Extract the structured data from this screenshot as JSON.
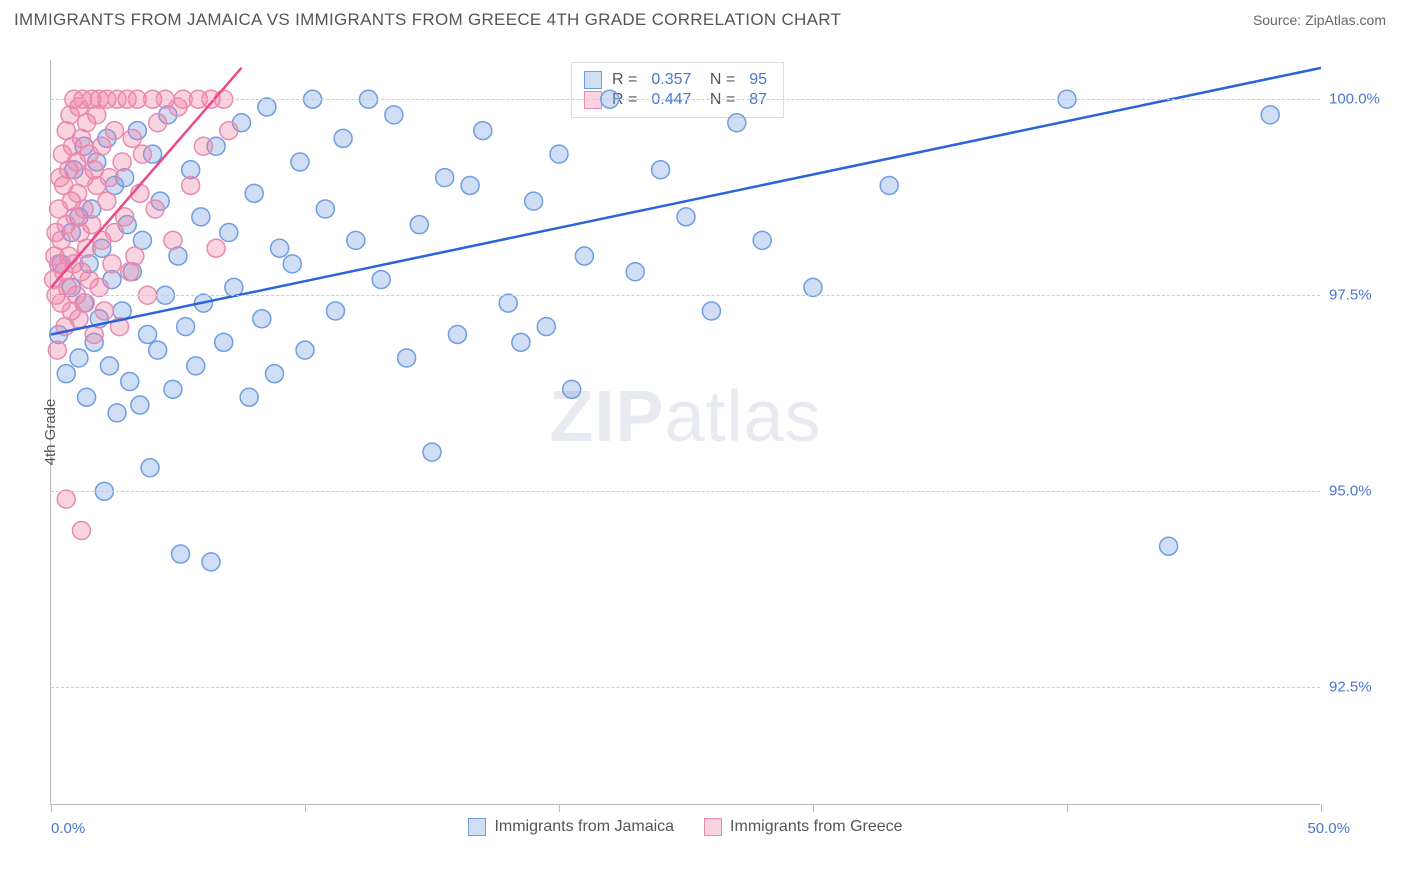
{
  "title": "IMMIGRANTS FROM JAMAICA VS IMMIGRANTS FROM GREECE 4TH GRADE CORRELATION CHART",
  "source_label": "Source: ZipAtlas.com",
  "watermark": {
    "bold": "ZIP",
    "light": "atlas"
  },
  "chart": {
    "type": "scatter",
    "y_axis_title": "4th Grade",
    "xlim": [
      0,
      50
    ],
    "ylim": [
      91,
      100.5
    ],
    "x_label_min": "0.0%",
    "x_label_max": "50.0%",
    "x_tick_positions": [
      0,
      10,
      20,
      30,
      40,
      50
    ],
    "y_ticks": [
      {
        "v": 100.0,
        "label": "100.0%"
      },
      {
        "v": 97.5,
        "label": "97.5%"
      },
      {
        "v": 95.0,
        "label": "95.0%"
      },
      {
        "v": 92.5,
        "label": "92.5%"
      }
    ],
    "grid_color": "#cccccc",
    "background_color": "#ffffff",
    "marker_radius": 9,
    "marker_stroke_width": 1.5,
    "line_width": 2.5,
    "series": [
      {
        "name": "Immigrants from Jamaica",
        "fill_color": "rgba(120,160,225,0.35)",
        "stroke_color": "#6f9de0",
        "line_color": "#2a64d8",
        "r_value": "0.357",
        "n_value": "95",
        "regression": {
          "x1": 0,
          "y1": 97.0,
          "x2": 50,
          "y2": 100.4
        },
        "points": [
          [
            0.3,
            97.0
          ],
          [
            0.4,
            97.9
          ],
          [
            0.6,
            96.5
          ],
          [
            0.8,
            97.6
          ],
          [
            0.8,
            98.3
          ],
          [
            0.9,
            99.1
          ],
          [
            1.1,
            96.7
          ],
          [
            1.1,
            98.5
          ],
          [
            1.3,
            97.4
          ],
          [
            1.3,
            99.4
          ],
          [
            1.4,
            96.2
          ],
          [
            1.5,
            97.9
          ],
          [
            1.6,
            98.6
          ],
          [
            1.7,
            96.9
          ],
          [
            1.8,
            99.2
          ],
          [
            1.9,
            97.2
          ],
          [
            2.0,
            98.1
          ],
          [
            2.1,
            95.0
          ],
          [
            2.2,
            99.5
          ],
          [
            2.3,
            96.6
          ],
          [
            2.4,
            97.7
          ],
          [
            2.5,
            98.9
          ],
          [
            2.6,
            96.0
          ],
          [
            2.8,
            97.3
          ],
          [
            2.9,
            99.0
          ],
          [
            3.0,
            98.4
          ],
          [
            3.1,
            96.4
          ],
          [
            3.2,
            97.8
          ],
          [
            3.4,
            99.6
          ],
          [
            3.5,
            96.1
          ],
          [
            3.6,
            98.2
          ],
          [
            3.8,
            97.0
          ],
          [
            3.9,
            95.3
          ],
          [
            4.0,
            99.3
          ],
          [
            4.2,
            96.8
          ],
          [
            4.3,
            98.7
          ],
          [
            4.5,
            97.5
          ],
          [
            4.6,
            99.8
          ],
          [
            4.8,
            96.3
          ],
          [
            5.0,
            98.0
          ],
          [
            5.1,
            94.2
          ],
          [
            5.3,
            97.1
          ],
          [
            5.5,
            99.1
          ],
          [
            5.7,
            96.6
          ],
          [
            5.9,
            98.5
          ],
          [
            6.0,
            97.4
          ],
          [
            6.3,
            94.1
          ],
          [
            6.5,
            99.4
          ],
          [
            6.8,
            96.9
          ],
          [
            7.0,
            98.3
          ],
          [
            7.2,
            97.6
          ],
          [
            7.5,
            99.7
          ],
          [
            7.8,
            96.2
          ],
          [
            8.0,
            98.8
          ],
          [
            8.3,
            97.2
          ],
          [
            8.5,
            99.9
          ],
          [
            8.8,
            96.5
          ],
          [
            9.0,
            98.1
          ],
          [
            9.5,
            97.9
          ],
          [
            9.8,
            99.2
          ],
          [
            10.0,
            96.8
          ],
          [
            10.3,
            100.0
          ],
          [
            10.8,
            98.6
          ],
          [
            11.2,
            97.3
          ],
          [
            11.5,
            99.5
          ],
          [
            12.0,
            98.2
          ],
          [
            12.5,
            100.0
          ],
          [
            13.0,
            97.7
          ],
          [
            13.5,
            99.8
          ],
          [
            14.0,
            96.7
          ],
          [
            14.5,
            98.4
          ],
          [
            15.0,
            95.5
          ],
          [
            15.5,
            99.0
          ],
          [
            16.0,
            97.0
          ],
          [
            16.5,
            98.9
          ],
          [
            17.0,
            99.6
          ],
          [
            18.0,
            97.4
          ],
          [
            18.5,
            96.9
          ],
          [
            19.0,
            98.7
          ],
          [
            19.5,
            97.1
          ],
          [
            20.0,
            99.3
          ],
          [
            20.5,
            96.3
          ],
          [
            21.0,
            98.0
          ],
          [
            22.0,
            100.0
          ],
          [
            23.0,
            97.8
          ],
          [
            24.0,
            99.1
          ],
          [
            25.0,
            98.5
          ],
          [
            26.0,
            97.3
          ],
          [
            27.0,
            99.7
          ],
          [
            28.0,
            98.2
          ],
          [
            30.0,
            97.6
          ],
          [
            33.0,
            98.9
          ],
          [
            40.0,
            100.0
          ],
          [
            44.0,
            94.3
          ],
          [
            48.0,
            99.8
          ]
        ]
      },
      {
        "name": "Immigrants from Greece",
        "fill_color": "rgba(240,130,165,0.35)",
        "stroke_color": "#e88aae",
        "line_color": "#e84a8a",
        "r_value": "0.447",
        "n_value": "87",
        "regression": {
          "x1": 0,
          "y1": 97.6,
          "x2": 7.5,
          "y2": 100.4
        },
        "points": [
          [
            0.1,
            97.7
          ],
          [
            0.15,
            98.0
          ],
          [
            0.2,
            97.5
          ],
          [
            0.2,
            98.3
          ],
          [
            0.25,
            96.8
          ],
          [
            0.3,
            98.6
          ],
          [
            0.3,
            97.9
          ],
          [
            0.35,
            99.0
          ],
          [
            0.4,
            97.4
          ],
          [
            0.4,
            98.2
          ],
          [
            0.45,
            99.3
          ],
          [
            0.5,
            97.8
          ],
          [
            0.5,
            98.9
          ],
          [
            0.55,
            97.1
          ],
          [
            0.6,
            99.6
          ],
          [
            0.6,
            98.4
          ],
          [
            0.65,
            97.6
          ],
          [
            0.7,
            99.1
          ],
          [
            0.7,
            98.0
          ],
          [
            0.75,
            99.8
          ],
          [
            0.8,
            97.3
          ],
          [
            0.8,
            98.7
          ],
          [
            0.85,
            99.4
          ],
          [
            0.9,
            97.9
          ],
          [
            0.9,
            100.0
          ],
          [
            0.95,
            98.5
          ],
          [
            1.0,
            99.2
          ],
          [
            1.0,
            97.5
          ],
          [
            1.05,
            98.8
          ],
          [
            1.1,
            99.9
          ],
          [
            1.1,
            97.2
          ],
          [
            1.15,
            98.3
          ],
          [
            1.2,
            99.5
          ],
          [
            1.2,
            97.8
          ],
          [
            1.25,
            100.0
          ],
          [
            1.3,
            98.6
          ],
          [
            1.3,
            99.0
          ],
          [
            1.35,
            97.4
          ],
          [
            1.4,
            99.7
          ],
          [
            1.4,
            98.1
          ],
          [
            1.5,
            99.3
          ],
          [
            1.5,
            97.7
          ],
          [
            1.6,
            100.0
          ],
          [
            1.6,
            98.4
          ],
          [
            1.7,
            99.1
          ],
          [
            1.7,
            97.0
          ],
          [
            1.8,
            98.9
          ],
          [
            1.8,
            99.8
          ],
          [
            1.9,
            97.6
          ],
          [
            1.9,
            100.0
          ],
          [
            2.0,
            98.2
          ],
          [
            2.0,
            99.4
          ],
          [
            2.1,
            97.3
          ],
          [
            2.2,
            98.7
          ],
          [
            2.2,
            100.0
          ],
          [
            2.3,
            99.0
          ],
          [
            2.4,
            97.9
          ],
          [
            2.5,
            99.6
          ],
          [
            2.5,
            98.3
          ],
          [
            2.6,
            100.0
          ],
          [
            2.7,
            97.1
          ],
          [
            2.8,
            99.2
          ],
          [
            2.9,
            98.5
          ],
          [
            3.0,
            100.0
          ],
          [
            3.1,
            97.8
          ],
          [
            3.2,
            99.5
          ],
          [
            3.3,
            98.0
          ],
          [
            3.4,
            100.0
          ],
          [
            3.5,
            98.8
          ],
          [
            3.6,
            99.3
          ],
          [
            3.8,
            97.5
          ],
          [
            4.0,
            100.0
          ],
          [
            4.1,
            98.6
          ],
          [
            4.2,
            99.7
          ],
          [
            4.5,
            100.0
          ],
          [
            4.8,
            98.2
          ],
          [
            5.0,
            99.9
          ],
          [
            5.2,
            100.0
          ],
          [
            5.5,
            98.9
          ],
          [
            5.8,
            100.0
          ],
          [
            6.0,
            99.4
          ],
          [
            6.3,
            100.0
          ],
          [
            6.5,
            98.1
          ],
          [
            6.8,
            100.0
          ],
          [
            7.0,
            99.6
          ],
          [
            0.6,
            94.9
          ],
          [
            1.2,
            94.5
          ]
        ]
      }
    ],
    "legend_series1_label": "Immigrants from Jamaica",
    "legend_series2_label": "Immigrants from Greece"
  }
}
